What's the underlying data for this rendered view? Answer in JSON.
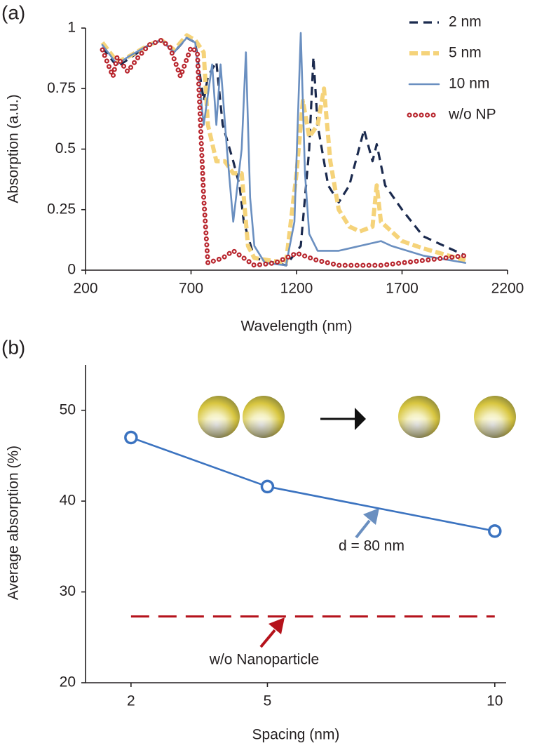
{
  "chart_data": [
    {
      "type": "line",
      "label": "(a)",
      "x_label": "Wavelength (nm)",
      "y_label": "Absorption (a.u.)",
      "xlim": [
        200,
        2200
      ],
      "xticks": [
        200,
        700,
        1200,
        1700,
        2200
      ],
      "ylim": [
        0,
        1
      ],
      "yticks": [
        0,
        0.25,
        0.5,
        0.75,
        1
      ],
      "legend": "upper right",
      "series": [
        {
          "name": "2 nm",
          "color": "#1b2a4e",
          "line_style": "dashed",
          "x": [
            280,
            350,
            400,
            500,
            560,
            620,
            680,
            720,
            760,
            780,
            820,
            850,
            900,
            930,
            950,
            1000,
            1150,
            1220,
            1260,
            1280,
            1300,
            1350,
            1400,
            1450,
            1520,
            1560,
            1580,
            1620,
            1700,
            1800,
            2000
          ],
          "values": [
            0.92,
            0.84,
            0.87,
            0.93,
            0.95,
            0.9,
            0.96,
            0.94,
            0.7,
            0.8,
            0.86,
            0.6,
            0.45,
            0.35,
            0.2,
            0.05,
            0.02,
            0.1,
            0.5,
            0.88,
            0.6,
            0.35,
            0.28,
            0.35,
            0.58,
            0.45,
            0.52,
            0.35,
            0.25,
            0.14,
            0.06
          ]
        },
        {
          "name": "5 nm",
          "color": "#f5d37a",
          "line_style": "thick-dashed",
          "x": [
            280,
            350,
            400,
            500,
            560,
            620,
            680,
            720,
            760,
            780,
            820,
            860,
            900,
            940,
            970,
            1000,
            1150,
            1200,
            1230,
            1260,
            1300,
            1330,
            1360,
            1400,
            1450,
            1500,
            1560,
            1580,
            1600,
            1700,
            1800,
            2000
          ],
          "values": [
            0.94,
            0.86,
            0.88,
            0.93,
            0.95,
            0.91,
            0.97,
            0.95,
            0.9,
            0.6,
            0.45,
            0.45,
            0.4,
            0.4,
            0.1,
            0.05,
            0.03,
            0.4,
            0.7,
            0.55,
            0.6,
            0.75,
            0.45,
            0.25,
            0.18,
            0.16,
            0.18,
            0.35,
            0.2,
            0.12,
            0.09,
            0.04
          ]
        },
        {
          "name": "10 nm",
          "color": "#6a8fc0",
          "line_style": "solid",
          "x": [
            280,
            350,
            400,
            500,
            560,
            620,
            680,
            720,
            760,
            800,
            820,
            840,
            870,
            900,
            940,
            960,
            980,
            1000,
            1050,
            1150,
            1190,
            1220,
            1240,
            1260,
            1300,
            1400,
            1500,
            1600,
            1650,
            1800,
            2000
          ],
          "values": [
            0.93,
            0.85,
            0.88,
            0.93,
            0.95,
            0.9,
            0.96,
            0.94,
            0.6,
            0.85,
            0.6,
            0.85,
            0.5,
            0.2,
            0.5,
            0.9,
            0.3,
            0.1,
            0.03,
            0.02,
            0.2,
            0.98,
            0.4,
            0.15,
            0.08,
            0.08,
            0.1,
            0.12,
            0.1,
            0.06,
            0.03
          ]
        },
        {
          "name": "w/o NP",
          "color": "#b8262e",
          "line_style": "dotted",
          "x": [
            280,
            330,
            350,
            400,
            450,
            500,
            560,
            600,
            650,
            700,
            730,
            760,
            780,
            850,
            900,
            950,
            1000,
            1100,
            1200,
            1300,
            1400,
            1600,
            1800,
            2000
          ],
          "values": [
            0.91,
            0.8,
            0.88,
            0.82,
            0.88,
            0.93,
            0.95,
            0.92,
            0.8,
            0.92,
            0.9,
            0.3,
            0.03,
            0.05,
            0.08,
            0.05,
            0.02,
            0.03,
            0.07,
            0.04,
            0.02,
            0.02,
            0.04,
            0.06
          ]
        }
      ]
    },
    {
      "type": "line",
      "label": "(b)",
      "x_label": "Spacing (nm)",
      "y_label": "Average absorption (%)",
      "x": [
        2,
        5,
        10
      ],
      "xlim": [
        1,
        10.25
      ],
      "xticks": [
        2,
        5,
        10
      ],
      "ylim": [
        20,
        55
      ],
      "yticks": [
        20,
        30,
        40,
        50
      ],
      "series": [
        {
          "name": "d = 80 nm",
          "color": "#3b73c0",
          "line_style": "solid",
          "marker": "open-circle",
          "values": [
            47.0,
            41.6,
            36.7
          ]
        },
        {
          "name": "w/o Nanoparticle",
          "color": "#b5121b",
          "line_style": "long-dashed",
          "values": [
            27.3,
            27.3,
            27.3
          ]
        }
      ]
    }
  ]
}
